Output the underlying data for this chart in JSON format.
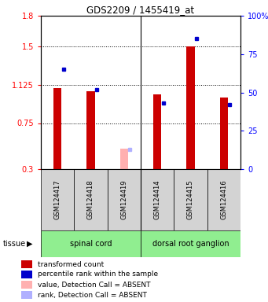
{
  "title": "GDS2209 / 1455419_at",
  "samples": [
    "GSM124417",
    "GSM124418",
    "GSM124419",
    "GSM124414",
    "GSM124415",
    "GSM124416"
  ],
  "red_values": [
    1.09,
    1.06,
    null,
    1.03,
    1.5,
    1.0
  ],
  "blue_values": [
    65,
    52,
    null,
    43,
    85,
    42
  ],
  "absent_red_values": [
    null,
    null,
    0.5,
    null,
    null,
    null
  ],
  "absent_blue_values": [
    null,
    null,
    13,
    null,
    null,
    null
  ],
  "ylim_left": [
    0.3,
    1.8
  ],
  "ylim_right": [
    0,
    100
  ],
  "yticks_left": [
    0.3,
    0.75,
    1.125,
    1.5,
    1.8
  ],
  "ytick_labels_left": [
    "0.3",
    "0.75",
    "1.125",
    "1.5",
    "1.8"
  ],
  "yticks_right": [
    0,
    25,
    50,
    75,
    100
  ],
  "ytick_labels_right": [
    "0",
    "25",
    "50",
    "75",
    "100%"
  ],
  "hlines": [
    0.75,
    1.125,
    1.5
  ],
  "bar_width": 0.25,
  "red_color": "#cc0000",
  "blue_color": "#0000cc",
  "absent_red_color": "#ffb0b0",
  "absent_blue_color": "#b0b0ff",
  "tissue_bg_color": "#90ee90",
  "sample_bg_color": "#d3d3d3",
  "group_positions": [
    [
      0,
      2,
      "spinal cord"
    ],
    [
      3,
      5,
      "dorsal root ganglion"
    ]
  ],
  "legend_items": [
    {
      "color": "#cc0000",
      "label": "transformed count"
    },
    {
      "color": "#0000cc",
      "label": "percentile rank within the sample"
    },
    {
      "color": "#ffb0b0",
      "label": "value, Detection Call = ABSENT"
    },
    {
      "color": "#b0b0ff",
      "label": "rank, Detection Call = ABSENT"
    }
  ]
}
